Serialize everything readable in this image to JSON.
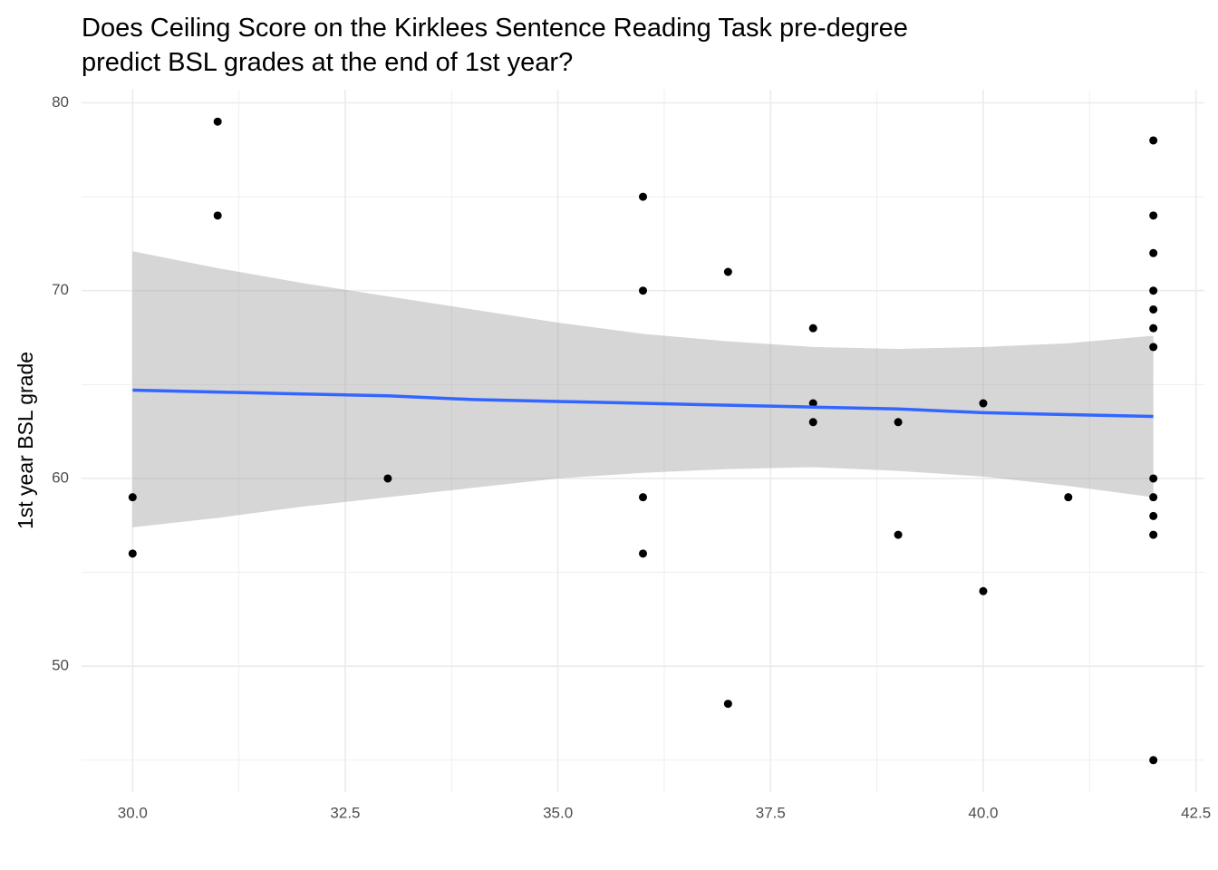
{
  "chart_data": {
    "type": "scatter",
    "title": [
      "Does Ceiling Score on the Kirklees Sentence Reading Task pre-degree",
      "predict BSL grades at the end of 1st year?"
    ],
    "ylabel": "1st year BSL grade",
    "x": [
      30,
      30,
      31,
      31,
      33,
      36,
      36,
      36,
      36,
      37,
      37,
      38,
      38,
      38,
      39,
      39,
      40,
      40,
      41,
      42,
      42,
      42,
      42,
      42,
      42,
      42,
      42,
      42,
      42,
      42,
      42
    ],
    "values": [
      59,
      56,
      79,
      74,
      60,
      75,
      70,
      59,
      56,
      71,
      48,
      68,
      64,
      63,
      63,
      57,
      64,
      54,
      59,
      78,
      74,
      72,
      70,
      69,
      68,
      67,
      60,
      59,
      58,
      57,
      45
    ],
    "color": "#000000",
    "smooth": {
      "color": "#3366ff",
      "fill": "#999999",
      "x": [
        30,
        31,
        32,
        33,
        34,
        35,
        36,
        37,
        38,
        39,
        40,
        41,
        42
      ],
      "values": [
        64.7,
        64.6,
        64.5,
        64.4,
        64.2,
        64.1,
        64.0,
        63.9,
        63.8,
        63.7,
        63.5,
        63.4,
        63.3
      ],
      "lower": [
        57.4,
        57.9,
        58.5,
        59.0,
        59.5,
        60.0,
        60.3,
        60.5,
        60.6,
        60.4,
        60.1,
        59.6,
        59.0
      ],
      "upper": [
        72.1,
        71.2,
        70.4,
        69.7,
        69.0,
        68.3,
        67.7,
        67.3,
        67.0,
        66.9,
        67.0,
        67.2,
        67.6
      ]
    },
    "xlim": [
      29.4,
      42.6
    ],
    "ylim": [
      43.3,
      80.7
    ],
    "xticks": [
      {
        "value": 30,
        "label": "30.0"
      },
      32.5,
      {
        "value": 35,
        "label": "35.0"
      },
      37.5,
      {
        "value": 40,
        "label": "40.0"
      },
      42.5
    ],
    "yticks": [
      50,
      60,
      70,
      80
    ],
    "x_minor_grid": [
      31.25,
      33.75,
      36.25,
      38.75,
      41.25
    ],
    "y_minor_grid": [
      45,
      55,
      65,
      75
    ],
    "grid": true
  }
}
